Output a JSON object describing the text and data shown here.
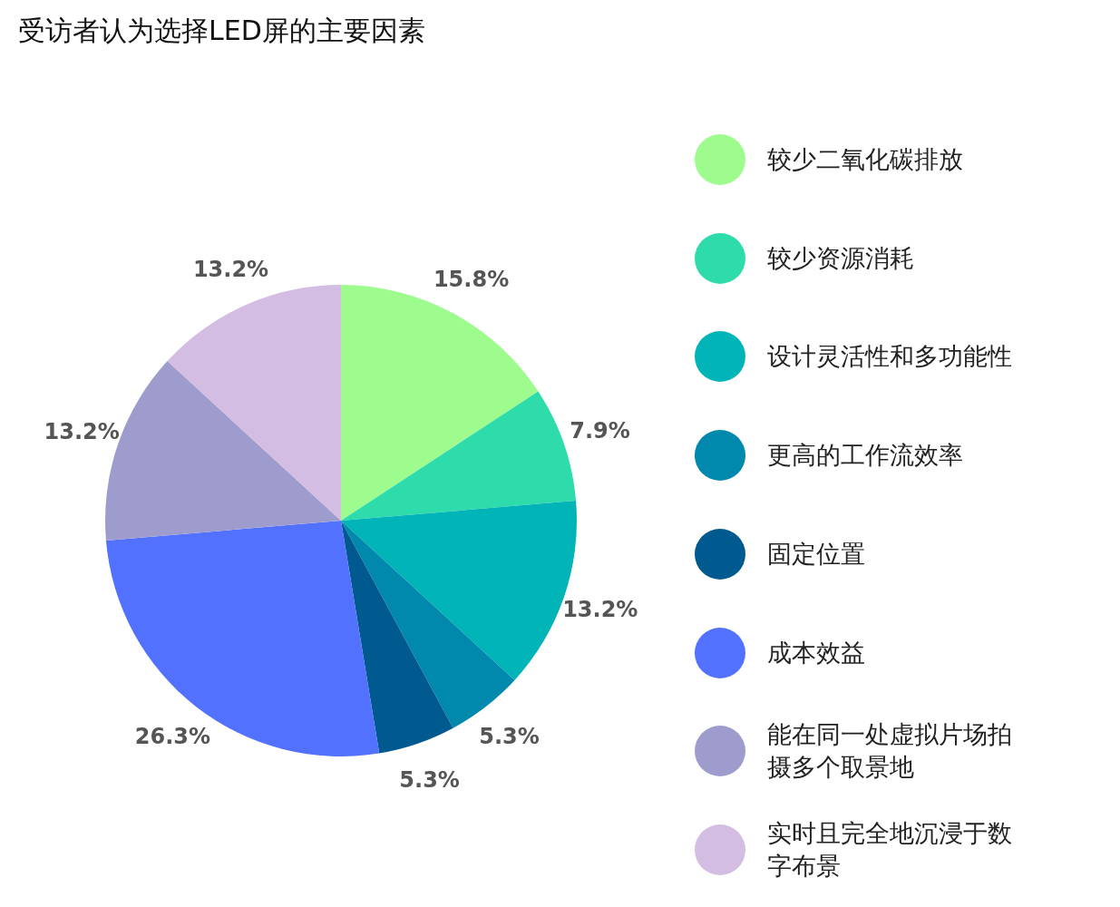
{
  "chart_data": {
    "type": "pie",
    "title": "受访者认为选择LED屏的主要因素",
    "categories": [
      "较少二氧化碳排放",
      "较少资源消耗",
      "设计灵活性和多功能性",
      "更高的工作流效率",
      "固定位置",
      "成本效益",
      "能在同一处虚拟片场拍摄多个取景地",
      "实时且完全地沉浸于数字布景"
    ],
    "values": [
      15.8,
      7.9,
      13.2,
      5.3,
      5.3,
      26.3,
      13.2,
      13.2
    ],
    "value_labels": [
      "15.8%",
      "7.9%",
      "13.2%",
      "5.3%",
      "5.3%",
      "26.3%",
      "13.2%",
      "13.2%"
    ],
    "colors": [
      "#9efc8e",
      "#2edcab",
      "#00b4b8",
      "#0088ad",
      "#005a8f",
      "#5271ff",
      "#9e9ccc",
      "#d3bde3"
    ],
    "legend": "right"
  }
}
